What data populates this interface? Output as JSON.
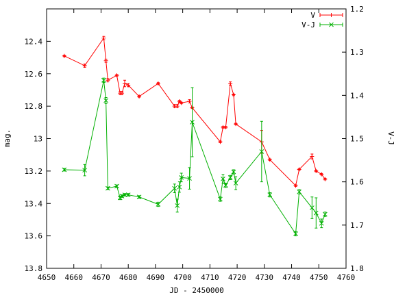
{
  "chart_data": {
    "type": "line",
    "xlabel": "JD - 2450000",
    "ylabel_left": "mag.",
    "ylabel_right": "V-J",
    "xlim": [
      4650,
      4760
    ],
    "ylim_left": [
      13.8,
      12.2
    ],
    "ylim_right": [
      1.8,
      1.2
    ],
    "x_ticks": [
      "4650",
      "4660",
      "4670",
      "4680",
      "4690",
      "4700",
      "4710",
      "4720",
      "4730",
      "4740",
      "4750",
      "4760"
    ],
    "y_ticks_left": [
      "12.4",
      "12.6",
      "12.8",
      "13",
      "13.2",
      "13.4",
      "13.6",
      "13.8"
    ],
    "y_ticks_right": [
      "1.2",
      "1.3",
      "1.4",
      "1.5",
      "1.6",
      "1.7",
      "1.8"
    ],
    "grid": false,
    "legend": "top-right",
    "series": [
      {
        "name": "V",
        "axis": "left",
        "color": "#ff0000",
        "marker": "plus",
        "points": [
          [
            4656.5,
            12.49,
            0.005
          ],
          [
            4664.0,
            12.55,
            0.01
          ],
          [
            4671.0,
            12.38,
            0.01
          ],
          [
            4671.8,
            12.52,
            0.01
          ],
          [
            4672.5,
            12.64,
            0.01
          ],
          [
            4675.8,
            12.61,
            0.005
          ],
          [
            4677.0,
            12.72,
            0.01
          ],
          [
            4677.7,
            12.72,
            0.01
          ],
          [
            4678.7,
            12.66,
            0.02
          ],
          [
            4680.0,
            12.67,
            0.01
          ],
          [
            4684.0,
            12.74,
            0.005
          ],
          [
            4691.0,
            12.66,
            0.005
          ],
          [
            4697.0,
            12.8,
            0.01
          ],
          [
            4698.0,
            12.8,
            0.01
          ],
          [
            4698.8,
            12.77,
            0.005
          ],
          [
            4699.5,
            12.78,
            0.005
          ],
          [
            4702.5,
            12.77,
            0.01
          ],
          [
            4703.5,
            12.81,
            0.005
          ],
          [
            4713.8,
            13.02,
            0.005
          ],
          [
            4714.8,
            12.93,
            0.005
          ],
          [
            4715.8,
            12.93,
            0.005
          ],
          [
            4717.5,
            12.66,
            0.01
          ],
          [
            4718.7,
            12.73,
            0.005
          ],
          [
            4719.5,
            12.91,
            0.005
          ],
          [
            4729.0,
            13.02,
            0.07
          ],
          [
            4732.0,
            13.13,
            0.005
          ],
          [
            4741.5,
            13.29,
            0.005
          ],
          [
            4742.8,
            13.19,
            0.005
          ],
          [
            4747.5,
            13.11,
            0.015
          ],
          [
            4749.0,
            13.2,
            0.005
          ],
          [
            4751.0,
            13.22,
            0.005
          ],
          [
            4752.3,
            13.25,
            0.005
          ]
        ]
      },
      {
        "name": "V-J",
        "axis": "right",
        "color": "#00b000",
        "marker": "cross",
        "points": [
          [
            4656.5,
            1.572,
            0.003
          ],
          [
            4664.0,
            1.573,
            0.013
          ],
          [
            4671.0,
            1.365,
            0.005
          ],
          [
            4671.8,
            1.412,
            0.007
          ],
          [
            4672.5,
            1.615,
            0.003
          ],
          [
            4675.8,
            1.61,
            0.003
          ],
          [
            4677.0,
            1.637,
            0.004
          ],
          [
            4677.7,
            1.633,
            0.003
          ],
          [
            4678.7,
            1.63,
            0.003
          ],
          [
            4680.0,
            1.63,
            0.003
          ],
          [
            4684.0,
            1.635,
            0.003
          ],
          [
            4691.0,
            1.652,
            0.005
          ],
          [
            4697.0,
            1.615,
            0.01
          ],
          [
            4698.0,
            1.655,
            0.015
          ],
          [
            4698.8,
            1.612,
            0.012
          ],
          [
            4699.5,
            1.59,
            0.01
          ],
          [
            4702.5,
            1.592,
            0.025
          ],
          [
            4703.5,
            1.462,
            0.08
          ],
          [
            4713.8,
            1.64,
            0.005
          ],
          [
            4714.8,
            1.593,
            0.01
          ],
          [
            4715.8,
            1.608,
            0.005
          ],
          [
            4717.5,
            1.59,
            0.005
          ],
          [
            4718.7,
            1.577,
            0.005
          ],
          [
            4719.5,
            1.603,
            0.015
          ],
          [
            4729.0,
            1.53,
            0.07
          ],
          [
            4732.0,
            1.63,
            0.005
          ],
          [
            4741.5,
            1.72,
            0.005
          ],
          [
            4742.8,
            1.623,
            0.005
          ],
          [
            4747.5,
            1.66,
            0.025
          ],
          [
            4749.0,
            1.672,
            0.035
          ],
          [
            4751.0,
            1.696,
            0.01
          ],
          [
            4752.3,
            1.675,
            0.005
          ]
        ]
      }
    ]
  }
}
